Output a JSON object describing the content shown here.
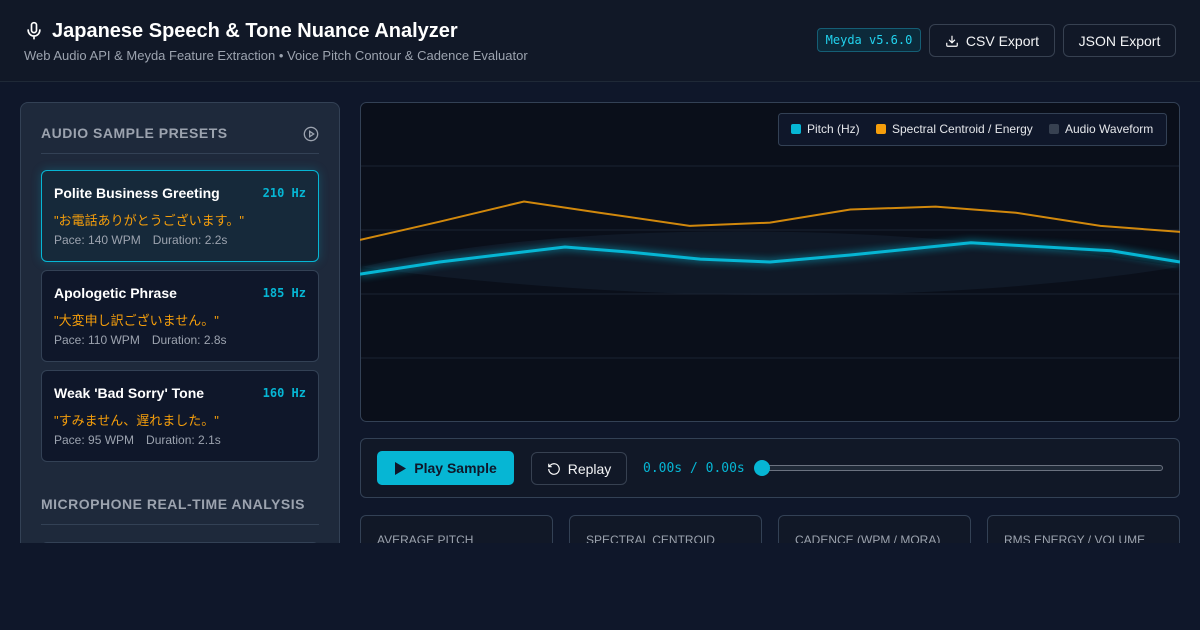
{
  "header": {
    "title": "Japanese Speech & Tone Nuance Analyzer",
    "subtitle": "Web Audio API & Meyda Feature Extraction • Voice Pitch Contour & Cadence Evaluator",
    "version": "Meyda v5.6.0",
    "buttons": [
      "CSV Export",
      "JSON Export"
    ]
  },
  "presets": {
    "title": "AUDIO SAMPLE PRESETS",
    "items": [
      {
        "name": "Polite Business Greeting",
        "pitch": "210 Hz",
        "phrase": "\"お電話ありがとうございます。\"",
        "pace": "Pace: 140 WPM",
        "duration": "Duration: 2.2s"
      },
      {
        "name": "Apologetic Phrase",
        "pitch": "185 Hz",
        "phrase": "\"大変申し訳ございません。\"",
        "pace": "Pace: 110 WPM",
        "duration": "Duration: 2.8s"
      },
      {
        "name": "Weak 'Bad Sorry' Tone",
        "pitch": "160 Hz",
        "phrase": "\"すみません、遅れました。\"",
        "pace": "Pace: 95 WPM",
        "duration": "Duration: 2.1s"
      }
    ]
  },
  "microphone": {
    "title": "MICROPHONE REAL-TIME ANALYSIS"
  },
  "chart_data": {
    "type": "line",
    "xlim": [
      0,
      100
    ],
    "ylim": [
      0,
      100
    ],
    "yticks": [
      20,
      40,
      60,
      80
    ],
    "grid": true,
    "legend": "upper right",
    "series": [
      {
        "name": "Pitch (Hz)",
        "color": "#06b6d4",
        "x": [
          0,
          9.7,
          25,
          32.9,
          41.5,
          50,
          59.8,
          74.5,
          91.6,
          100
        ],
        "values": [
          46.2,
          50,
          54.7,
          53.1,
          50.9,
          50,
          52.2,
          56,
          53.5,
          50
        ]
      },
      {
        "name": "Spectral Centroid / Energy",
        "color": "#f59e0b",
        "x": [
          0,
          9.7,
          20,
          29.2,
          40.2,
          50,
          59.8,
          70.2,
          80,
          90.3,
          100
        ],
        "values": [
          56.9,
          62.6,
          68.9,
          65.4,
          61.3,
          62.3,
          66.4,
          67.3,
          65.4,
          61.3,
          59.4
        ]
      },
      {
        "name": "Audio Waveform",
        "color": "#374151",
        "x": [],
        "values": []
      }
    ]
  },
  "controls": {
    "play": "Play Sample",
    "replay": "Replay",
    "time": "0.00s / 0.00s"
  },
  "stats": [
    "AVERAGE PITCH",
    "SPECTRAL CENTROID",
    "CADENCE (WPM / MORA)",
    "RMS ENERGY / VOLUME"
  ]
}
